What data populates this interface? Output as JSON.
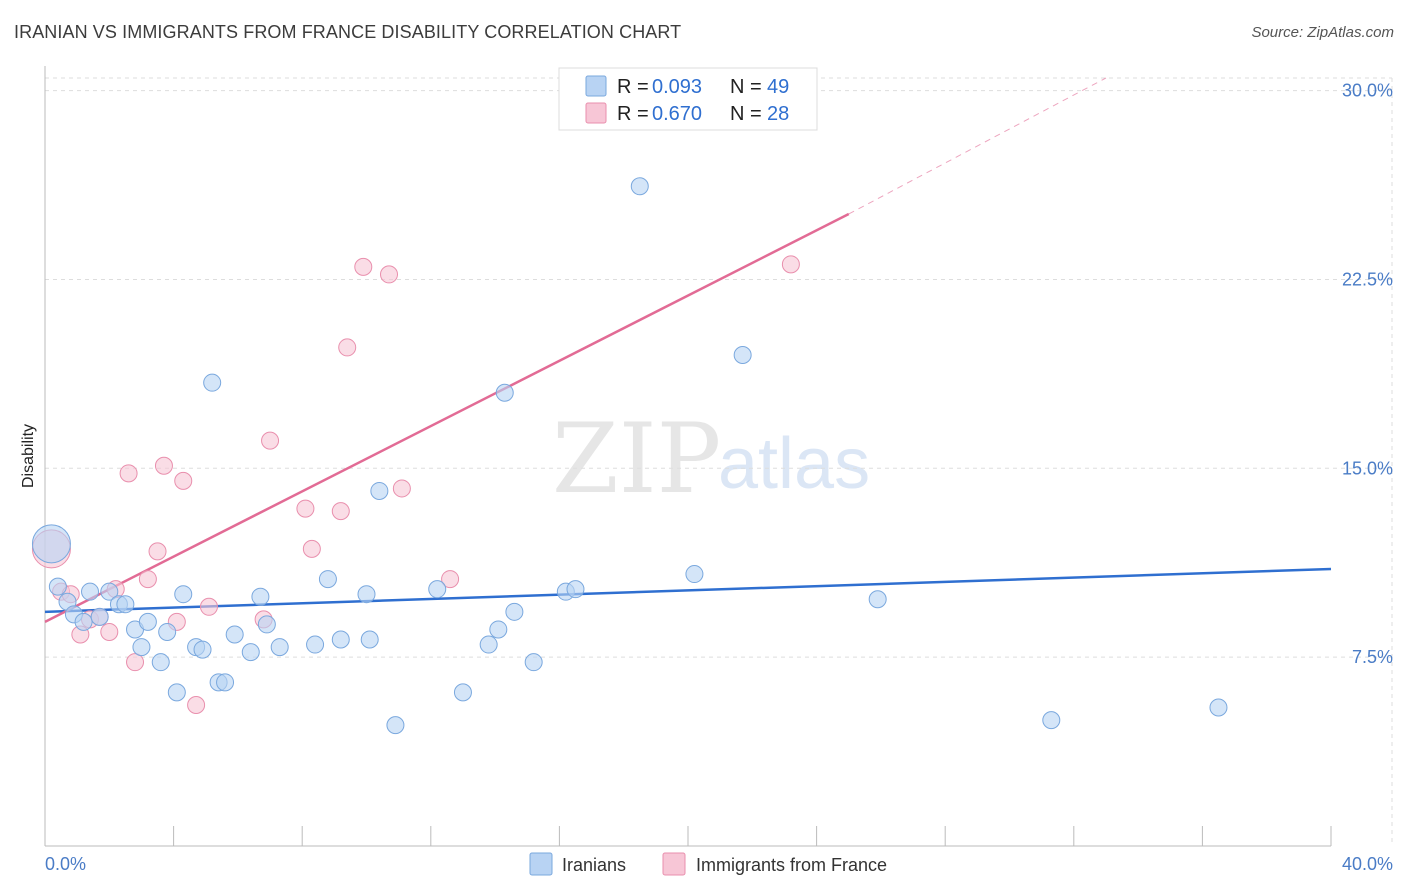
{
  "title": "IRANIAN VS IMMIGRANTS FROM FRANCE DISABILITY CORRELATION CHART",
  "source": "Source: ZipAtlas.com",
  "watermark": {
    "zip": "ZIP",
    "atlas": "atlas"
  },
  "colors": {
    "iranians_fill": "#b8d3f3",
    "iranians_stroke": "#7aa8de",
    "iranians_line": "#2f6fd0",
    "france_fill": "#f7c6d6",
    "france_stroke": "#e98fad",
    "france_line": "#e26b95",
    "axis_text": "#4a7cc6",
    "grid": "#dddddd"
  },
  "legend": {
    "iranians": {
      "r_label": "R =",
      "r_value": "0.093",
      "n_label": "N =",
      "n_value": "49"
    },
    "france": {
      "r_label": "R =",
      "r_value": "0.670",
      "n_label": "N =",
      "n_value": "28"
    }
  },
  "chart_data": {
    "type": "scatter",
    "title": "IRANIAN VS IMMIGRANTS FROM FRANCE DISABILITY CORRELATION CHART",
    "xlabel": "",
    "ylabel": "Disability",
    "xlim": [
      0,
      40
    ],
    "ylim": [
      0,
      30.5
    ],
    "x_tick_labels": [
      "0.0%",
      "40.0%"
    ],
    "y_ticks": [
      7.5,
      15.0,
      22.5,
      30.0
    ],
    "y_tick_labels": [
      "7.5%",
      "15.0%",
      "22.5%",
      "30.0%"
    ],
    "grid": true,
    "legend_position": "top-center",
    "series": [
      {
        "name": "Iranians",
        "r": 0.093,
        "n": 49,
        "trend": {
          "x": [
            0,
            40
          ],
          "y": [
            9.3,
            11.0
          ],
          "dashed_extension": false
        },
        "points": [
          {
            "x": 0.2,
            "y": 12.0,
            "big": true
          },
          {
            "x": 0.4,
            "y": 10.3
          },
          {
            "x": 0.7,
            "y": 9.7
          },
          {
            "x": 0.9,
            "y": 9.2
          },
          {
            "x": 1.2,
            "y": 8.9
          },
          {
            "x": 1.4,
            "y": 10.1
          },
          {
            "x": 1.7,
            "y": 9.1
          },
          {
            "x": 2.0,
            "y": 10.1
          },
          {
            "x": 2.3,
            "y": 9.6
          },
          {
            "x": 2.5,
            "y": 9.6
          },
          {
            "x": 2.8,
            "y": 8.6
          },
          {
            "x": 3.0,
            "y": 7.9
          },
          {
            "x": 3.2,
            "y": 8.9
          },
          {
            "x": 3.6,
            "y": 7.3
          },
          {
            "x": 3.8,
            "y": 8.5
          },
          {
            "x": 4.1,
            "y": 6.1
          },
          {
            "x": 4.3,
            "y": 10.0
          },
          {
            "x": 4.7,
            "y": 7.9
          },
          {
            "x": 4.9,
            "y": 7.8
          },
          {
            "x": 5.2,
            "y": 18.4
          },
          {
            "x": 5.4,
            "y": 6.5
          },
          {
            "x": 5.6,
            "y": 6.5
          },
          {
            "x": 5.9,
            "y": 8.4
          },
          {
            "x": 6.4,
            "y": 7.7
          },
          {
            "x": 6.7,
            "y": 9.9
          },
          {
            "x": 6.9,
            "y": 8.8
          },
          {
            "x": 7.3,
            "y": 7.9
          },
          {
            "x": 8.4,
            "y": 8.0
          },
          {
            "x": 8.8,
            "y": 10.6
          },
          {
            "x": 9.2,
            "y": 8.2
          },
          {
            "x": 10.0,
            "y": 10.0
          },
          {
            "x": 10.1,
            "y": 8.2
          },
          {
            "x": 10.4,
            "y": 14.1
          },
          {
            "x": 10.9,
            "y": 4.8
          },
          {
            "x": 12.2,
            "y": 10.2
          },
          {
            "x": 13.0,
            "y": 6.1
          },
          {
            "x": 13.8,
            "y": 8.0
          },
          {
            "x": 14.1,
            "y": 8.6
          },
          {
            "x": 14.3,
            "y": 18.0
          },
          {
            "x": 14.6,
            "y": 9.3
          },
          {
            "x": 15.2,
            "y": 7.3
          },
          {
            "x": 16.2,
            "y": 10.1
          },
          {
            "x": 16.5,
            "y": 10.2
          },
          {
            "x": 18.5,
            "y": 26.2
          },
          {
            "x": 20.2,
            "y": 10.8
          },
          {
            "x": 21.7,
            "y": 19.5
          },
          {
            "x": 25.9,
            "y": 9.8
          },
          {
            "x": 31.3,
            "y": 5.0
          },
          {
            "x": 36.5,
            "y": 5.5
          }
        ]
      },
      {
        "name": "Immigrants from France",
        "r": 0.67,
        "n": 28,
        "trend": {
          "x": [
            0,
            25.0
          ],
          "y": [
            8.9,
            25.1
          ],
          "dashed_extension": true,
          "dashed_to": {
            "x": 33.0,
            "y": 30.5
          }
        },
        "points": [
          {
            "x": 0.2,
            "y": 11.8,
            "big": true
          },
          {
            "x": 0.5,
            "y": 10.1
          },
          {
            "x": 0.8,
            "y": 10.0
          },
          {
            "x": 1.1,
            "y": 8.4
          },
          {
            "x": 1.4,
            "y": 9.0
          },
          {
            "x": 1.7,
            "y": 9.1
          },
          {
            "x": 2.0,
            "y": 8.5
          },
          {
            "x": 2.2,
            "y": 10.2
          },
          {
            "x": 2.6,
            "y": 14.8
          },
          {
            "x": 2.8,
            "y": 7.3
          },
          {
            "x": 3.2,
            "y": 10.6
          },
          {
            "x": 3.5,
            "y": 11.7
          },
          {
            "x": 3.7,
            "y": 15.1
          },
          {
            "x": 4.1,
            "y": 8.9
          },
          {
            "x": 4.3,
            "y": 14.5
          },
          {
            "x": 4.7,
            "y": 5.6
          },
          {
            "x": 5.1,
            "y": 9.5
          },
          {
            "x": 6.8,
            "y": 9.0
          },
          {
            "x": 7.0,
            "y": 16.1
          },
          {
            "x": 8.1,
            "y": 13.4
          },
          {
            "x": 8.3,
            "y": 11.8
          },
          {
            "x": 9.2,
            "y": 13.3
          },
          {
            "x": 9.4,
            "y": 19.8
          },
          {
            "x": 9.9,
            "y": 23.0
          },
          {
            "x": 10.7,
            "y": 22.7
          },
          {
            "x": 11.1,
            "y": 14.2
          },
          {
            "x": 12.6,
            "y": 10.6
          },
          {
            "x": 23.2,
            "y": 23.1
          }
        ]
      }
    ]
  },
  "bottom_legend": {
    "iranians": "Iranians",
    "france": "Immigrants from France"
  }
}
